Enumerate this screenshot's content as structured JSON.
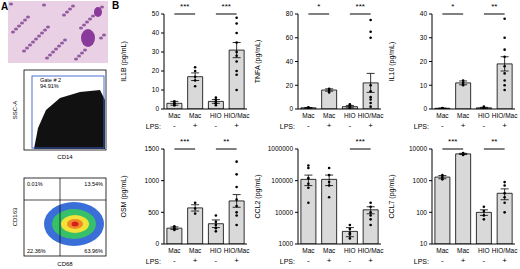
{
  "panel_a": {
    "label": "A",
    "flow1": {
      "gate": "Gate # 2",
      "percent": "94.91%",
      "y_label": "SSC-A",
      "x_label": "CD14"
    },
    "flow2": {
      "quadrants": [
        "0.01%",
        "13.54%",
        "22.36%",
        "63.96%"
      ],
      "y_label": "CD163",
      "x_label": "CD68"
    }
  },
  "panel_b_label": "B",
  "chart_data": [
    {
      "type": "bar",
      "y_label": "IL1B (pg/mL)",
      "categories": [
        "Mac",
        "Mac",
        "HIO",
        "HIO/Mac"
      ],
      "lps_label": "LPS:",
      "lps": [
        "-",
        "+",
        "-",
        "+"
      ],
      "values": [
        3,
        17,
        4,
        31
      ],
      "errors": [
        1,
        2,
        1,
        4
      ],
      "points": [
        [
          2,
          3,
          4,
          3,
          2
        ],
        [
          12,
          15,
          17,
          20,
          22
        ],
        [
          2,
          3,
          5,
          6,
          4,
          3
        ],
        [
          10,
          18,
          25,
          30,
          35,
          45,
          48,
          20,
          28,
          40
        ]
      ],
      "ylim": [
        0,
        50
      ],
      "yticks": [
        0,
        10,
        20,
        30,
        40,
        50
      ],
      "comparisons": [
        {
          "groups": [
            0,
            1
          ],
          "label": "***"
        },
        {
          "groups": [
            2,
            3
          ],
          "label": "***"
        }
      ],
      "color": "#d9d9d9"
    },
    {
      "type": "bar",
      "y_label": "TNFA (pg/mL)",
      "categories": [
        "Mac",
        "Mac",
        "HIO",
        "HIO/Mac"
      ],
      "lps_label": "LPS:",
      "lps": [
        "-",
        "+",
        "-",
        "+"
      ],
      "values": [
        1,
        16,
        2,
        22
      ],
      "errors": [
        0.3,
        1,
        1,
        8
      ],
      "points": [
        [
          0.5,
          1,
          1.5
        ],
        [
          14,
          16,
          17
        ],
        [
          0,
          1,
          2,
          4,
          3
        ],
        [
          2,
          5,
          8,
          15,
          20,
          60,
          65,
          75,
          10
        ]
      ],
      "ylim": [
        0,
        80
      ],
      "yticks": [
        0,
        20,
        40,
        60,
        80
      ],
      "comparisons": [
        {
          "groups": [
            0,
            1
          ],
          "label": "*"
        },
        {
          "groups": [
            2,
            3
          ],
          "label": "***"
        }
      ],
      "color": "#d9d9d9"
    },
    {
      "type": "bar",
      "y_label": "IL10 (pg/mL)",
      "categories": [
        "Mac",
        "Mac",
        "HIO",
        "HIO/Mac"
      ],
      "lps_label": "LPS:",
      "lps": [
        "-",
        "+",
        "-",
        "+"
      ],
      "values": [
        0.3,
        11,
        0.5,
        19
      ],
      "errors": [
        0.1,
        0.8,
        0.2,
        3
      ],
      "points": [
        [
          0.2,
          0.3,
          0.4
        ],
        [
          10,
          11,
          12
        ],
        [
          0,
          0.5,
          1,
          0.3
        ],
        [
          8,
          12,
          15,
          18,
          22,
          25,
          30,
          38,
          10
        ]
      ],
      "ylim": [
        0,
        40
      ],
      "yticks": [
        0,
        10,
        20,
        30,
        40
      ],
      "comparisons": [
        {
          "groups": [
            0,
            1
          ],
          "label": "*"
        },
        {
          "groups": [
            2,
            3
          ],
          "label": "**"
        }
      ],
      "color": "#d9d9d9"
    },
    {
      "type": "bar",
      "y_label": "OSM (pg/mL)",
      "categories": [
        "Mac",
        "Mac",
        "HIO",
        "HIO/Mac"
      ],
      "lps_label": "LPS:",
      "lps": [
        "-",
        "+",
        "-",
        "+"
      ],
      "values": [
        250,
        570,
        320,
        680
      ],
      "errors": [
        20,
        50,
        60,
        100
      ],
      "points": [
        [
          220,
          250,
          280
        ],
        [
          480,
          560,
          650
        ],
        [
          200,
          250,
          350,
          450,
          300
        ],
        [
          300,
          450,
          600,
          700,
          900,
          1100,
          1300,
          500
        ]
      ],
      "ylim": [
        0,
        1500
      ],
      "yticks": [
        0,
        500,
        1000,
        1500
      ],
      "comparisons": [
        {
          "groups": [
            0,
            1
          ],
          "label": "***"
        },
        {
          "groups": [
            2,
            3
          ],
          "label": "**"
        }
      ],
      "color": "#d9d9d9"
    },
    {
      "type": "bar",
      "y_label": "CCL2 (pg/mL)",
      "categories": [
        "Mac",
        "Mac",
        "HIO",
        "HIO/Mac"
      ],
      "lps_label": "LPS:",
      "lps": [
        "-",
        "+",
        "-",
        "+"
      ],
      "values": [
        110000,
        110000,
        2500,
        12000
      ],
      "errors": [
        40000,
        40000,
        800,
        3000
      ],
      "points": [
        [
          20000,
          60000,
          120000,
          250000,
          300000,
          80000
        ],
        [
          30000,
          70000,
          150000,
          250000,
          90000
        ],
        [
          1500,
          2000,
          3000,
          4000,
          2200
        ],
        [
          4000,
          8000,
          15000,
          20000,
          10000,
          6000
        ]
      ],
      "ylim": [
        1000,
        1000000
      ],
      "yticks": [
        1000,
        10000,
        100000,
        1000000
      ],
      "log": "y",
      "comparisons": [
        {
          "groups": [
            2,
            3
          ],
          "label": "***"
        }
      ],
      "color": "#d9d9d9"
    },
    {
      "type": "bar",
      "y_label": "CCL7 (pg/mL)",
      "categories": [
        "Mac",
        "Mac",
        "HIO",
        "HIO/Mac"
      ],
      "lps_label": "LPS:",
      "lps": [
        "-",
        "+",
        "-",
        "+"
      ],
      "values": [
        1300,
        7000,
        100,
        400
      ],
      "errors": [
        150,
        300,
        20,
        150
      ],
      "points": [
        [
          1100,
          1300,
          1500
        ],
        [
          6500,
          7000,
          7500
        ],
        [
          60,
          80,
          110,
          150
        ],
        [
          100,
          200,
          400,
          700,
          900,
          300
        ]
      ],
      "ylim": [
        10,
        10000
      ],
      "yticks": [
        10,
        100,
        1000,
        10000
      ],
      "log": "y",
      "comparisons": [
        {
          "groups": [
            0,
            1
          ],
          "label": "***"
        },
        {
          "groups": [
            2,
            3
          ],
          "label": "**"
        }
      ],
      "color": "#d9d9d9"
    }
  ]
}
